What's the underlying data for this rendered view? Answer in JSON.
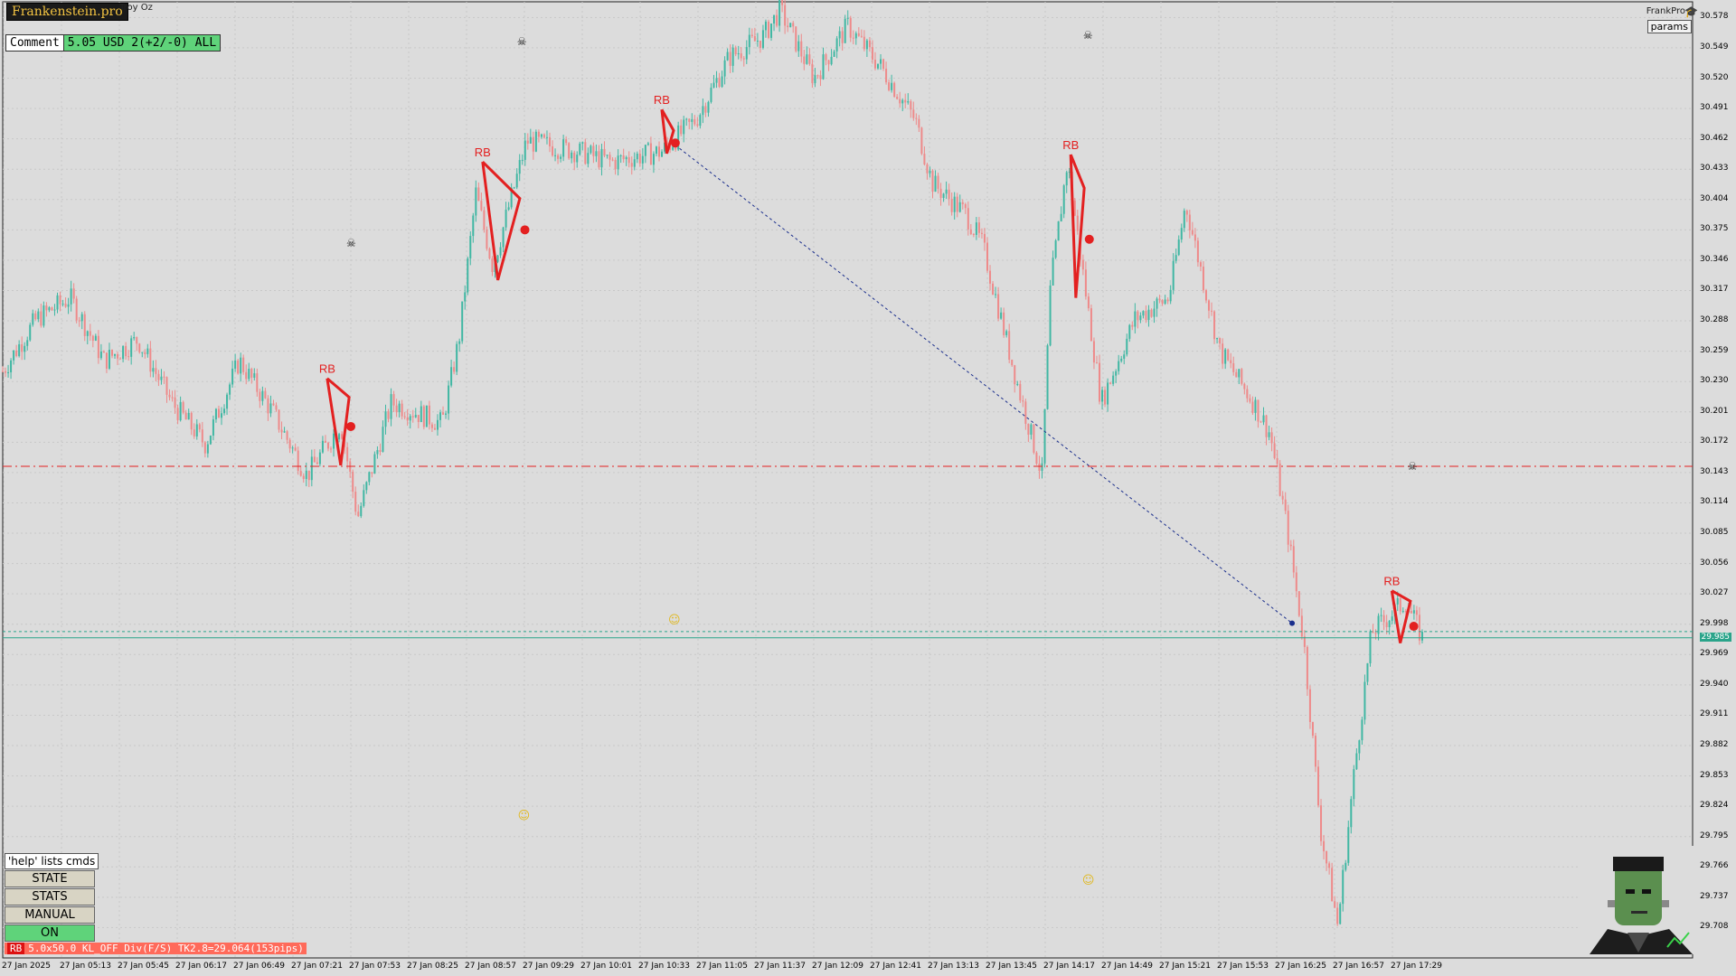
{
  "header": {
    "brand": "Frankenstein.pro",
    "symbol_text": "Troy Oz",
    "comment_label": "Comment",
    "comment_value": "5.05 USD 2(+2/-0) ALL",
    "top_right_name": "FrankPro",
    "params_label": "params"
  },
  "panel": {
    "help": "'help' lists cmds",
    "state": "STATE",
    "stats": "STATS",
    "manual": "MANUAL",
    "on": "ON"
  },
  "status_bar": {
    "tag": "RB",
    "text": "5.0x50.0 KL_OFF Div(F/S) TK2.8=29.064(153pips)"
  },
  "colors": {
    "background": "#dcdcdc",
    "up": "#40b7a3",
    "down": "#ee8a8a",
    "pattern": "#e32020",
    "target_line": "#1a2e8c",
    "current_price": "#2aa48a"
  },
  "chart_data": {
    "type": "candlestick",
    "ylim": [
      29.679,
      30.593
    ],
    "y_ticks": [
      "30.578",
      "30.549",
      "30.520",
      "30.491",
      "30.462",
      "30.433",
      "30.404",
      "30.375",
      "30.346",
      "30.317",
      "30.288",
      "30.259",
      "30.230",
      "30.201",
      "30.172",
      "30.143",
      "30.114",
      "30.085",
      "30.056",
      "30.027",
      "29.998",
      "29.969",
      "29.940",
      "29.911",
      "29.882",
      "29.853",
      "29.824",
      "29.795",
      "29.766",
      "29.737",
      "29.708"
    ],
    "x_ticks": [
      "27 Jan 2025",
      "27 Jan 05:13",
      "27 Jan 05:45",
      "27 Jan 06:17",
      "27 Jan 06:49",
      "27 Jan 07:21",
      "27 Jan 07:53",
      "27 Jan 08:25",
      "27 Jan 08:57",
      "27 Jan 09:29",
      "27 Jan 10:01",
      "27 Jan 10:33",
      "27 Jan 11:05",
      "27 Jan 11:37",
      "27 Jan 12:09",
      "27 Jan 12:41",
      "27 Jan 13:13",
      "27 Jan 13:45",
      "27 Jan 14:17",
      "27 Jan 14:49",
      "27 Jan 15:21",
      "27 Jan 15:53",
      "27 Jan 16:25",
      "27 Jan 16:57",
      "27 Jan 17:29"
    ],
    "price_path": [
      [
        0,
        30.24
      ],
      [
        0.02,
        30.29
      ],
      [
        0.04,
        30.31
      ],
      [
        0.06,
        30.25
      ],
      [
        0.08,
        30.27
      ],
      [
        0.1,
        30.21
      ],
      [
        0.12,
        30.17
      ],
      [
        0.14,
        30.25
      ],
      [
        0.16,
        30.2
      ],
      [
        0.18,
        30.14
      ],
      [
        0.2,
        30.19
      ],
      [
        0.21,
        30.1
      ],
      [
        0.23,
        30.21
      ],
      [
        0.26,
        30.19
      ],
      [
        0.27,
        30.27
      ],
      [
        0.28,
        30.41
      ],
      [
        0.29,
        30.34
      ],
      [
        0.31,
        30.46
      ],
      [
        0.34,
        30.45
      ],
      [
        0.36,
        30.44
      ],
      [
        0.39,
        30.45
      ],
      [
        0.41,
        30.48
      ],
      [
        0.43,
        30.54
      ],
      [
        0.45,
        30.56
      ],
      [
        0.46,
        30.585
      ],
      [
        0.48,
        30.52
      ],
      [
        0.5,
        30.57
      ],
      [
        0.52,
        30.53
      ],
      [
        0.54,
        30.48
      ],
      [
        0.55,
        30.42
      ],
      [
        0.57,
        30.39
      ],
      [
        0.58,
        30.36
      ],
      [
        0.6,
        30.23
      ],
      [
        0.615,
        30.14
      ],
      [
        0.62,
        30.32
      ],
      [
        0.63,
        30.44
      ],
      [
        0.65,
        30.21
      ],
      [
        0.67,
        30.29
      ],
      [
        0.69,
        30.31
      ],
      [
        0.7,
        30.4
      ],
      [
        0.72,
        30.26
      ],
      [
        0.74,
        30.21
      ],
      [
        0.75,
        30.18
      ],
      [
        0.76,
        30.09
      ],
      [
        0.77,
        29.98
      ],
      [
        0.78,
        29.8
      ],
      [
        0.79,
        29.71
      ],
      [
        0.8,
        29.86
      ],
      [
        0.81,
        29.99
      ],
      [
        0.83,
        30.02
      ],
      [
        0.84,
        29.985
      ]
    ],
    "current_price": "29.985",
    "horizontal_levels": [
      {
        "value": 30.149,
        "style": "dash-dot",
        "color": "#e32020"
      },
      {
        "value": 29.991,
        "style": "dashed",
        "color": "#2aa48a"
      },
      {
        "value": 29.985,
        "style": "solid",
        "color": "#2aa48a"
      }
    ],
    "target_line": {
      "from": [
        0.398,
        30.456
      ],
      "to": [
        0.763,
        29.999
      ]
    },
    "rb_patterns": [
      {
        "label": "RB",
        "points": [
          [
            0.192,
            30.233
          ],
          [
            0.2,
            30.15
          ],
          [
            0.205,
            30.215
          ],
          [
            0.192,
            30.233
          ]
        ],
        "exit": [
          0.206,
          30.187
        ]
      },
      {
        "label": "RB",
        "points": [
          [
            0.284,
            30.44
          ],
          [
            0.293,
            30.327
          ],
          [
            0.306,
            30.405
          ],
          [
            0.284,
            30.44
          ]
        ],
        "exit": [
          0.309,
          30.375
        ]
      },
      {
        "label": "RB",
        "points": [
          [
            0.39,
            30.49
          ],
          [
            0.393,
            30.448
          ],
          [
            0.397,
            30.47
          ],
          [
            0.39,
            30.49
          ]
        ],
        "exit": [
          0.398,
          30.458
        ]
      },
      {
        "label": "RB",
        "points": [
          [
            0.632,
            30.447
          ],
          [
            0.635,
            30.31
          ],
          [
            0.64,
            30.415
          ],
          [
            0.632,
            30.447
          ]
        ],
        "exit": [
          0.643,
          30.366
        ]
      },
      {
        "label": "RB",
        "points": [
          [
            0.822,
            30.03
          ],
          [
            0.827,
            29.98
          ],
          [
            0.833,
            30.02
          ],
          [
            0.822,
            30.03
          ]
        ],
        "exit": [
          0.835,
          29.996
        ]
      }
    ],
    "skull_markers": [
      [
        0.206,
        30.363
      ],
      [
        0.307,
        30.556
      ],
      [
        0.642,
        30.562
      ],
      [
        0.834,
        30.15
      ]
    ],
    "smile_markers": [
      [
        0.397,
        30.003
      ],
      [
        0.308,
        29.816
      ],
      [
        0.642,
        29.754
      ]
    ]
  }
}
